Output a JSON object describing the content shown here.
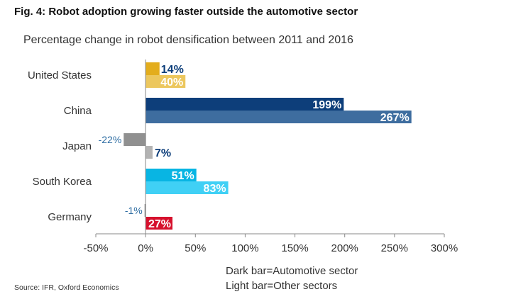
{
  "title": "Fig. 4: Robot adoption growing faster outside the automotive sector",
  "subtitle": "Percentage change in robot densification between 2011 and 2016",
  "legend": {
    "dark": "Dark bar=Automotive sector",
    "light": "Light bar=Other sectors"
  },
  "source": "Source: IFR, Oxford Economics",
  "chart_data": {
    "type": "bar",
    "orientation": "horizontal",
    "title": "Fig. 4: Robot adoption growing faster outside the automotive sector",
    "subtitle": "Percentage change in robot densification between 2011 and 2016",
    "categories": [
      "United States",
      "China",
      "Japan",
      "South Korea",
      "Germany"
    ],
    "series": [
      {
        "values": [
          14,
          199,
          -22,
          51,
          -1
        ],
        "labels": [
          "14%",
          "199%",
          "-22%",
          "51%",
          "-1%"
        ],
        "colors": [
          "#e3ad1d",
          "#0d3e7a",
          "#909090",
          "#08b5e3",
          "#7a7a7a"
        ]
      },
      {
        "values": [
          40,
          267,
          7,
          83,
          27
        ],
        "labels": [
          "40%",
          "267%",
          "7%",
          "83%",
          "27%"
        ],
        "colors": [
          "#ecc75e",
          "#3e6d9f",
          "#b3b3b3",
          "#40d0f5",
          "#d6112d"
        ]
      }
    ],
    "xlim": [
      -50,
      300
    ],
    "xticks": [
      -50,
      0,
      50,
      100,
      150,
      200,
      250,
      300
    ],
    "xtick_labels": [
      "-50%",
      "0%",
      "50%",
      "100%",
      "150%",
      "200%",
      "250%",
      "300%"
    ],
    "grid": false,
    "legend_position": "bottom"
  }
}
